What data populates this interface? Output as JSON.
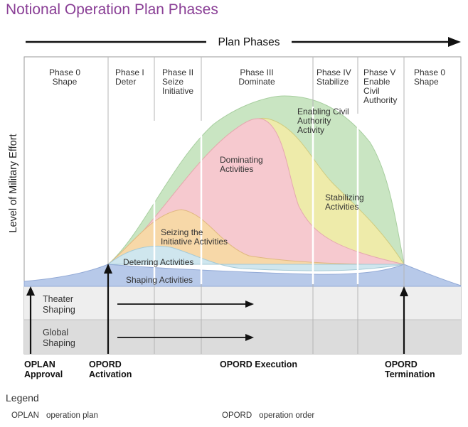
{
  "title": "Notional Operation Plan Phases",
  "header": {
    "label": "Plan Phases"
  },
  "y_axis_label": "Level of Military Effort",
  "phases": [
    {
      "lines": [
        "Phase 0",
        "Shape"
      ]
    },
    {
      "lines": [
        "Phase I",
        "Deter"
      ]
    },
    {
      "lines": [
        "Phase II",
        "Seize",
        "Initiative"
      ]
    },
    {
      "lines": [
        "Phase III",
        "Dominate"
      ]
    },
    {
      "lines": [
        "Phase IV",
        "Stabilize"
      ]
    },
    {
      "lines": [
        "Phase V",
        "Enable",
        "Civil",
        "Authority"
      ]
    },
    {
      "lines": [
        "Phase 0",
        "Shape"
      ]
    }
  ],
  "activities": [
    {
      "lines": [
        "Enabling Civil",
        "Authority",
        "Activity"
      ],
      "color": "#c9e5c2"
    },
    {
      "lines": [
        "Dominating",
        "Activities"
      ],
      "color": "#f6c9cf"
    },
    {
      "lines": [
        "Stabilizing",
        "Activities"
      ],
      "color": "#eeebaa"
    },
    {
      "lines": [
        "Seizing the",
        "Initiative Activities"
      ],
      "color": "#f7d8a8"
    },
    {
      "lines": [
        "Deterring Activities"
      ],
      "color": "#cfe6ee"
    },
    {
      "lines": [
        "Shaping Activities"
      ],
      "color": "#b7c9e9"
    }
  ],
  "bands": [
    {
      "lines": [
        "Theater",
        "Shaping"
      ]
    },
    {
      "lines": [
        "Global",
        "Shaping"
      ]
    }
  ],
  "milestones": [
    {
      "lines": [
        "OPLAN",
        "Approval"
      ]
    },
    {
      "lines": [
        "OPORD",
        "Activation"
      ]
    },
    {
      "lines": [
        "OPORD Execution"
      ]
    },
    {
      "lines": [
        "OPORD",
        "Termination"
      ]
    }
  ],
  "legend": {
    "title": "Legend",
    "items": [
      {
        "abbr": "OPLAN",
        "meaning": "operation plan"
      },
      {
        "abbr": "OPORD",
        "meaning": "operation order"
      }
    ]
  }
}
